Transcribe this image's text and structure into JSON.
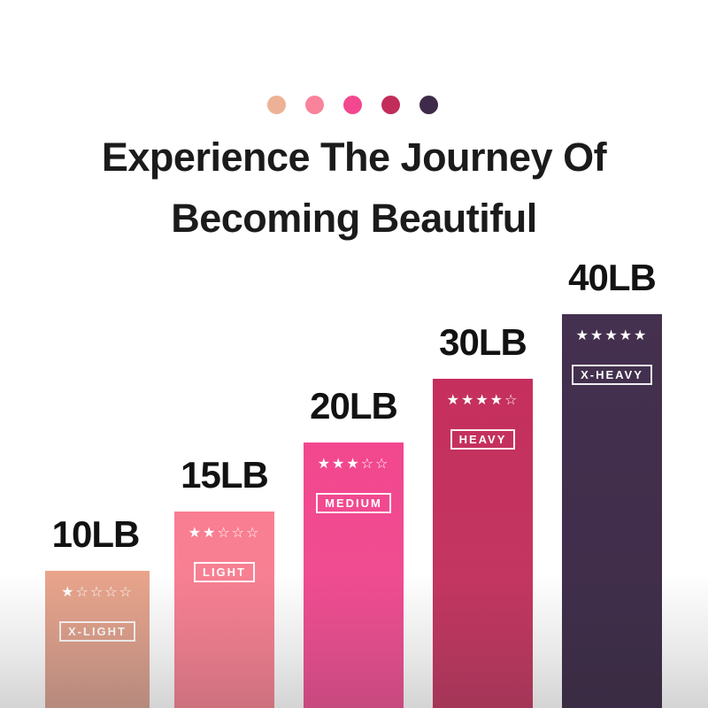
{
  "header": {
    "title_line1": "Experience The Journey Of",
    "title_line2": "Becoming Beautiful",
    "palette_dots": [
      {
        "name": "x-light-swatch",
        "color": "#edb295"
      },
      {
        "name": "light-swatch",
        "color": "#f8839a"
      },
      {
        "name": "medium-swatch",
        "color": "#f3488f"
      },
      {
        "name": "heavy-swatch",
        "color": "#c22c5b"
      },
      {
        "name": "x-heavy-swatch",
        "color": "#3e2b49"
      }
    ]
  },
  "chart_data": {
    "type": "bar",
    "categories": [
      "X-LIGHT",
      "LIGHT",
      "MEDIUM",
      "HEAVY",
      "X-HEAVY"
    ],
    "values": [
      10,
      15,
      20,
      30,
      40
    ],
    "value_unit": "LB",
    "value_labels": [
      "10LB",
      "15LB",
      "20LB",
      "30LB",
      "40LB"
    ],
    "star_ratings": [
      1,
      2,
      3,
      4,
      5
    ],
    "star_scale_max": 5,
    "bar_colors": [
      "#e2a28d",
      "#f97f92",
      "#ef4990",
      "#c33261",
      "#433050"
    ],
    "title": "Experience The Journey Of Becoming Beautiful",
    "xlabel": "",
    "ylabel": "",
    "grid": false,
    "axes_hidden": true,
    "legend_position": "none"
  },
  "bars": [
    {
      "weight": "10LB",
      "grade": "X-LIGHT",
      "rating": 1,
      "stars_display": "★☆☆☆☆",
      "color": "#e2a28d"
    },
    {
      "weight": "15LB",
      "grade": "LIGHT",
      "rating": 2,
      "stars_display": "★★☆☆☆",
      "color": "#f97f92"
    },
    {
      "weight": "20LB",
      "grade": "MEDIUM",
      "rating": 3,
      "stars_display": "★★★☆☆",
      "color": "#ef4990"
    },
    {
      "weight": "30LB",
      "grade": "HEAVY",
      "rating": 4,
      "stars_display": "★★★★☆",
      "color": "#c33261"
    },
    {
      "weight": "40LB",
      "grade": "X-HEAVY",
      "rating": 5,
      "stars_display": "★★★★★",
      "color": "#433050"
    }
  ]
}
